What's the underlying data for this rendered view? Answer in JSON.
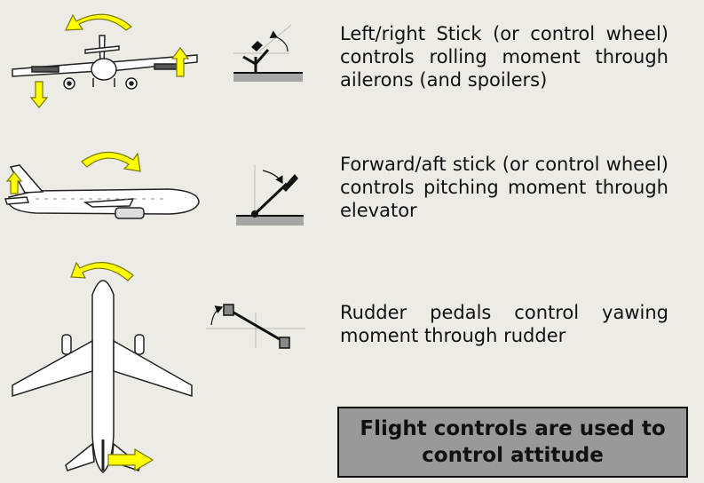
{
  "rows": [
    {
      "description": "Left/right Stick (or control wheel) controls rolling moment through ailerons (and spoilers)"
    },
    {
      "description": "Forward/aft stick (or control wheel) controls pitching moment through elevator"
    },
    {
      "description": "Rudder pedals control yawing moment through rudder"
    }
  ],
  "callout": {
    "text": "Flight controls are used to control attitude"
  },
  "colors": {
    "arrow_fill": "#ffff00",
    "arrow_stroke": "#777700",
    "ground": "#a6a6a6",
    "callout_bg": "#999999",
    "background": "#ecebe6"
  }
}
